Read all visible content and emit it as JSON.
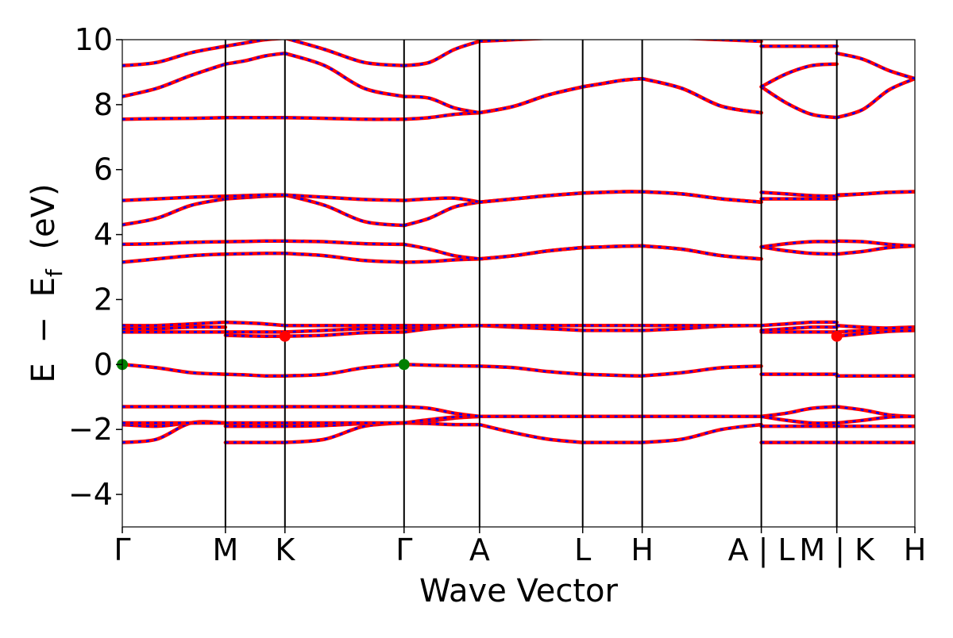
{
  "chart_data": {
    "type": "line",
    "title": "",
    "xlabel": "Wave Vector",
    "ylabel_parts": [
      "E",
      "−",
      "E",
      "f",
      "(eV)"
    ],
    "ylim": [
      -5,
      10
    ],
    "yticks": [
      -4,
      -2,
      0,
      2,
      4,
      6,
      8,
      10
    ],
    "ytick_labels": [
      "−4",
      "−2",
      "0",
      "2",
      "4",
      "6",
      "8",
      "10"
    ],
    "xlim": [
      0,
      7.685
    ],
    "kpoints": [
      {
        "label": "Γ",
        "x": 0.0
      },
      {
        "label": "M",
        "x": 1.0
      },
      {
        "label": "K",
        "x": 1.577
      },
      {
        "label": "Γ",
        "x": 2.732
      },
      {
        "label": "A",
        "x": 3.464
      },
      {
        "label": "L",
        "x": 4.464
      },
      {
        "label": "H",
        "x": 5.041
      },
      {
        "label": "A | L",
        "x": 6.196
      },
      {
        "label": "M | K",
        "x": 6.928
      },
      {
        "label": "H",
        "x": 7.685
      }
    ],
    "colors": {
      "up": "#ff0000",
      "down": "#0000ff",
      "vbm": "#008000",
      "cbm": "#ff0000"
    },
    "segments": [
      {
        "x0": 0.0,
        "x1": 1.0,
        "bands": [
          [
            -2.4,
            -2.3,
            -1.8,
            -1.8
          ],
          [
            -1.85,
            -1.9,
            -1.8,
            -1.8
          ],
          [
            -1.8,
            -1.8,
            -1.8,
            -1.8
          ],
          [
            -1.3,
            -1.3,
            -1.3,
            -1.3
          ],
          [
            0.0,
            -0.1,
            -0.25,
            -0.3
          ],
          [
            1.0,
            1.0,
            1.0,
            1.0
          ],
          [
            1.1,
            1.1,
            1.15,
            1.15
          ],
          [
            1.2,
            1.2,
            1.25,
            1.3
          ],
          [
            3.15,
            3.25,
            3.35,
            3.4
          ],
          [
            3.7,
            3.72,
            3.76,
            3.78
          ],
          [
            4.3,
            4.5,
            4.9,
            5.1
          ],
          [
            5.05,
            5.1,
            5.15,
            5.18
          ],
          [
            7.55,
            7.57,
            7.58,
            7.6
          ],
          [
            8.25,
            8.5,
            8.9,
            9.25
          ],
          [
            9.2,
            9.3,
            9.6,
            9.8
          ]
        ]
      },
      {
        "x0": 1.0,
        "x1": 1.577,
        "bands": [
          [
            -2.4,
            -2.4,
            -2.4,
            -2.4
          ],
          [
            -1.9,
            -1.9,
            -1.9,
            -1.9
          ],
          [
            -1.8,
            -1.8,
            -1.8,
            -1.8
          ],
          [
            -1.3,
            -1.3,
            -1.3,
            -1.3
          ],
          [
            -0.3,
            -0.32,
            -0.35,
            -0.35
          ],
          [
            0.9,
            0.88,
            0.87,
            0.87
          ],
          [
            1.0,
            1.0,
            1.0,
            1.0
          ],
          [
            1.3,
            1.28,
            1.25,
            1.2
          ],
          [
            3.4,
            3.41,
            3.42,
            3.42
          ],
          [
            3.78,
            3.79,
            3.8,
            3.8
          ],
          [
            5.1,
            5.14,
            5.18,
            5.2
          ],
          [
            5.18,
            5.2,
            5.22,
            5.22
          ],
          [
            7.6,
            7.6,
            7.6,
            7.6
          ],
          [
            9.25,
            9.35,
            9.5,
            9.58
          ],
          [
            9.8,
            9.9,
            10.0,
            10.05
          ]
        ]
      },
      {
        "x0": 1.577,
        "x1": 2.732,
        "bands": [
          [
            -2.4,
            -2.3,
            -1.9,
            -1.8
          ],
          [
            -1.9,
            -1.88,
            -1.82,
            -1.8
          ],
          [
            -1.8,
            -1.8,
            -1.8,
            -1.8
          ],
          [
            -1.3,
            -1.3,
            -1.3,
            -1.3
          ],
          [
            -0.35,
            -0.3,
            -0.1,
            0.0
          ],
          [
            0.87,
            0.9,
            0.98,
            1.0
          ],
          [
            1.0,
            1.05,
            1.1,
            1.12
          ],
          [
            1.2,
            1.2,
            1.2,
            1.2
          ],
          [
            3.42,
            3.35,
            3.2,
            3.15
          ],
          [
            3.8,
            3.78,
            3.72,
            3.7
          ],
          [
            5.22,
            4.9,
            4.4,
            4.28
          ],
          [
            5.22,
            5.15,
            5.08,
            5.05
          ],
          [
            7.6,
            7.58,
            7.55,
            7.55
          ],
          [
            9.58,
            9.2,
            8.5,
            8.25
          ],
          [
            10.05,
            9.7,
            9.3,
            9.2
          ]
        ]
      },
      {
        "x0": 2.732,
        "x1": 3.464,
        "bands": [
          [
            -1.8,
            -1.82,
            -1.85,
            -1.85
          ],
          [
            -1.8,
            -1.75,
            -1.65,
            -1.6
          ],
          [
            -1.8,
            -1.7,
            -1.62,
            -1.6
          ],
          [
            -1.3,
            -1.35,
            -1.5,
            -1.6
          ],
          [
            0.0,
            -0.02,
            -0.04,
            -0.05
          ],
          [
            1.0,
            1.1,
            1.17,
            1.2
          ],
          [
            1.12,
            1.15,
            1.18,
            1.2
          ],
          [
            1.2,
            1.2,
            1.2,
            1.2
          ],
          [
            3.15,
            3.17,
            3.22,
            3.25
          ],
          [
            3.7,
            3.55,
            3.35,
            3.25
          ],
          [
            4.28,
            4.5,
            4.85,
            5.0
          ],
          [
            5.05,
            5.1,
            5.12,
            5.0
          ],
          [
            7.55,
            7.6,
            7.7,
            7.75
          ],
          [
            8.25,
            8.2,
            7.9,
            7.75
          ],
          [
            9.2,
            9.3,
            9.7,
            9.95
          ]
        ]
      },
      {
        "x0": 3.464,
        "x1": 4.464,
        "bands": [
          [
            -1.85,
            -2.1,
            -2.3,
            -2.4
          ],
          [
            -1.6,
            -1.6,
            -1.6,
            -1.6
          ],
          [
            -1.6,
            -1.6,
            -1.6,
            -1.6
          ],
          [
            -1.6,
            -1.6,
            -1.6,
            -1.6
          ],
          [
            -0.05,
            -0.1,
            -0.22,
            -0.3
          ],
          [
            1.2,
            1.15,
            1.1,
            1.05
          ],
          [
            1.2,
            1.2,
            1.2,
            1.2
          ],
          [
            1.2,
            1.2,
            1.2,
            1.2
          ],
          [
            3.25,
            3.35,
            3.5,
            3.6
          ],
          [
            3.25,
            3.35,
            3.5,
            3.6
          ],
          [
            5.0,
            5.1,
            5.2,
            5.28
          ],
          [
            5.0,
            5.1,
            5.2,
            5.28
          ],
          [
            7.75,
            7.95,
            8.3,
            8.55
          ],
          [
            7.75,
            7.95,
            8.3,
            8.55
          ],
          [
            9.95,
            10.0,
            10.05,
            10.1
          ]
        ]
      },
      {
        "x0": 4.464,
        "x1": 5.041,
        "bands": [
          [
            -2.4,
            -2.4,
            -2.4,
            -2.4
          ],
          [
            -1.6,
            -1.6,
            -1.6,
            -1.6
          ],
          [
            -1.6,
            -1.6,
            -1.6,
            -1.6
          ],
          [
            -1.6,
            -1.6,
            -1.6,
            -1.6
          ],
          [
            -0.3,
            -0.32,
            -0.34,
            -0.35
          ],
          [
            1.05,
            1.05,
            1.05,
            1.05
          ],
          [
            1.2,
            1.2,
            1.2,
            1.2
          ],
          [
            1.2,
            1.2,
            1.2,
            1.2
          ],
          [
            3.6,
            3.62,
            3.64,
            3.65
          ],
          [
            3.6,
            3.62,
            3.64,
            3.65
          ],
          [
            5.28,
            5.3,
            5.32,
            5.32
          ],
          [
            5.28,
            5.3,
            5.32,
            5.32
          ],
          [
            8.55,
            8.65,
            8.75,
            8.8
          ],
          [
            8.55,
            8.65,
            8.75,
            8.8
          ],
          [
            10.1,
            10.1,
            10.1,
            10.1
          ]
        ]
      },
      {
        "x0": 5.041,
        "x1": 6.196,
        "bands": [
          [
            -2.4,
            -2.3,
            -2.0,
            -1.85
          ],
          [
            -1.6,
            -1.6,
            -1.6,
            -1.6
          ],
          [
            -1.6,
            -1.6,
            -1.6,
            -1.6
          ],
          [
            -1.6,
            -1.6,
            -1.6,
            -1.6
          ],
          [
            -0.35,
            -0.25,
            -0.1,
            -0.05
          ],
          [
            1.05,
            1.1,
            1.18,
            1.2
          ],
          [
            1.2,
            1.2,
            1.2,
            1.2
          ],
          [
            1.2,
            1.2,
            1.2,
            1.2
          ],
          [
            3.65,
            3.55,
            3.35,
            3.25
          ],
          [
            3.65,
            3.55,
            3.35,
            3.25
          ],
          [
            5.32,
            5.25,
            5.1,
            5.0
          ],
          [
            5.32,
            5.25,
            5.1,
            5.0
          ],
          [
            8.8,
            8.5,
            7.95,
            7.75
          ],
          [
            8.8,
            8.5,
            7.95,
            7.75
          ],
          [
            10.1,
            10.05,
            10.0,
            9.95
          ]
        ]
      },
      {
        "x0": 6.196,
        "x1": 6.928,
        "bands": [
          [
            -2.4,
            -2.4,
            -2.4,
            -2.4
          ],
          [
            -1.9,
            -1.9,
            -1.9,
            -1.9
          ],
          [
            -1.6,
            -1.5,
            -1.35,
            -1.3
          ],
          [
            -1.6,
            -1.72,
            -1.8,
            -1.8
          ],
          [
            -0.3,
            -0.3,
            -0.3,
            -0.3
          ],
          [
            1.0,
            1.0,
            1.0,
            1.0
          ],
          [
            1.05,
            1.1,
            1.15,
            1.15
          ],
          [
            1.2,
            1.25,
            1.3,
            1.3
          ],
          [
            3.62,
            3.5,
            3.42,
            3.4
          ],
          [
            3.62,
            3.72,
            3.78,
            3.78
          ],
          [
            5.1,
            5.1,
            5.1,
            5.1
          ],
          [
            5.3,
            5.25,
            5.2,
            5.18
          ],
          [
            8.55,
            8.05,
            7.7,
            7.6
          ],
          [
            8.55,
            8.95,
            9.2,
            9.25
          ],
          [
            9.8,
            9.8,
            9.8,
            9.8
          ]
        ]
      },
      {
        "x0": 6.928,
        "x1": 7.685,
        "bands": [
          [
            -2.4,
            -2.4,
            -2.4,
            -2.4
          ],
          [
            -1.9,
            -1.9,
            -1.9,
            -1.9
          ],
          [
            -1.3,
            -1.4,
            -1.55,
            -1.6
          ],
          [
            -1.8,
            -1.72,
            -1.62,
            -1.6
          ],
          [
            -0.35,
            -0.35,
            -0.35,
            -0.35
          ],
          [
            0.87,
            0.95,
            1.02,
            1.05
          ],
          [
            1.0,
            1.05,
            1.12,
            1.15
          ],
          [
            1.2,
            1.15,
            1.12,
            1.15
          ],
          [
            3.4,
            3.48,
            3.6,
            3.65
          ],
          [
            3.8,
            3.78,
            3.7,
            3.65
          ],
          [
            5.2,
            5.25,
            5.3,
            5.32
          ],
          [
            5.22,
            5.25,
            5.3,
            5.32
          ],
          [
            7.6,
            7.85,
            8.45,
            8.8
          ],
          [
            9.58,
            9.4,
            9.05,
            8.8
          ],
          [
            10.05,
            10.05,
            10.05,
            10.05
          ]
        ]
      }
    ],
    "markers": [
      {
        "type": "vbm",
        "x": 0.0,
        "y": 0.0
      },
      {
        "type": "vbm",
        "x": 2.732,
        "y": 0.0
      },
      {
        "type": "cbm",
        "x": 1.577,
        "y": 0.87
      },
      {
        "type": "cbm",
        "x": 6.928,
        "y": 0.87
      }
    ]
  }
}
